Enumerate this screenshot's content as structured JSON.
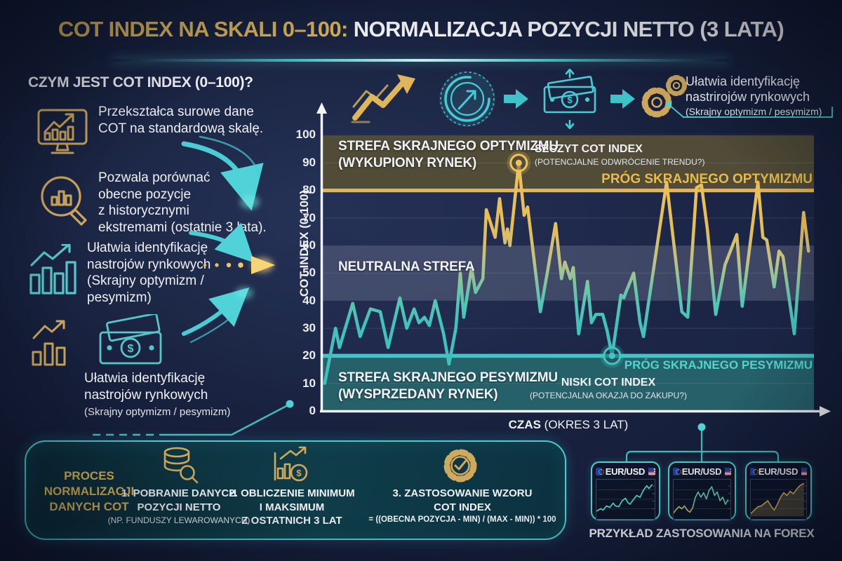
{
  "header": {
    "title_accent": "COT INDEX NA SKALI 0–100:",
    "title_rest": " NORMALIZACJA POZYCJI NETTO (3 LATA)"
  },
  "intro": {
    "heading": "CZYM JEST COT INDEX (0–100)?",
    "items": [
      {
        "icon": "monitor-chart-icon",
        "text": "Przekształca surowe dane\nCOT na standardową skalę."
      },
      {
        "icon": "magnifier-chart-icon",
        "text": "Pozwala porównać\nobecne pozycje\nz historycznymi\nekstremami (ostatnie 3 lata)."
      },
      {
        "icon": "bar-chart-up-icon",
        "text": "Ułatwia identyfikację\nnastrojów rynkowych\n(Skrajny optymizm /\npesymizm)"
      },
      {
        "icon": "bar-chart-up-gold-icon money-icon",
        "text": "Ułatwia identyfikację\nnastrojów rynkowych",
        "sub": "(Skrajny optymizm / pesymizm)"
      }
    ]
  },
  "flow_icons": [
    "trend-arrow-icon",
    "gauge-icon",
    "arrow-right-icon",
    "money-icon",
    "arrow-right-icon",
    "gears-icon"
  ],
  "callout": {
    "text": "Ułatwia identyfikację\nnastrirojów rynkowych",
    "sub": "(Skrajny optymizm / pesymizm)"
  },
  "glyphs": {
    "dollar": "$"
  },
  "chart_data": {
    "type": "line",
    "title": "COT INDEX NA SKALI 0–100: NORMALIZACJA POZYCJI NETTO (3 LATA)",
    "ylabel": "COT INDEX (0-100)",
    "xlabel_bold": "CZAS",
    "xlabel_rest": " (OKRES 3 LAT)",
    "ylim": [
      0,
      100
    ],
    "xlim_note": "x = percent of 3-year period",
    "grid": true,
    "y_ticks": [
      "100",
      "90",
      "80",
      "70",
      "60",
      "50",
      "40",
      "30",
      "20",
      "10",
      "0"
    ],
    "zones": [
      {
        "name": "optimism",
        "label": "STREFA SKRAJNEGO OPTYMIZMU\n(WYKUPIONY RYNEK)",
        "range": [
          80,
          100
        ],
        "color": "#554f36"
      },
      {
        "name": "neutral",
        "label": "NEUTRALNA STREFA",
        "range": [
          40,
          60
        ],
        "color": "#6d7590"
      },
      {
        "name": "pessimism",
        "label": "STREFA SKRAJNEGO PESYMIZMU\n(WYSPRZEDANY RYNEK)",
        "range": [
          0,
          20
        ],
        "color": "#27646c"
      }
    ],
    "thresholds": [
      {
        "label": "PRÓG SKRAJNEGO OPTYMIZMU",
        "value": 80,
        "color": "#e2b74e"
      },
      {
        "label": "PRÓG SKRAJNEGO PESYMIZMU",
        "value": 20,
        "color": "#3ec8c5"
      }
    ],
    "annotations": [
      {
        "label": "SZCZYT COT INDEX",
        "sub": "(POTENCJALNE ODWRÓCENIE TRENDU?)",
        "x": 39.9,
        "y": 90
      },
      {
        "label": "NISKI COT INDEX",
        "sub": "(POTENCJALNA OKAZJA DO ZAKUPU?)",
        "x": 58.9,
        "y": 20
      }
    ],
    "series": [
      {
        "name": "COT Index",
        "points": [
          [
            0.4,
            10
          ],
          [
            2.6,
            30
          ],
          [
            3.4,
            23
          ],
          [
            6.1,
            39
          ],
          [
            7.6,
            27
          ],
          [
            9.7,
            37
          ],
          [
            11.7,
            36
          ],
          [
            13.3,
            23
          ],
          [
            15.7,
            41
          ],
          [
            17.1,
            30
          ],
          [
            18.6,
            37
          ],
          [
            19.6,
            32
          ],
          [
            20.7,
            34
          ],
          [
            21.7,
            31
          ],
          [
            22.9,
            40
          ],
          [
            24.6,
            28
          ],
          [
            25.7,
            17
          ],
          [
            27.1,
            30
          ],
          [
            28,
            50
          ],
          [
            28.7,
            34
          ],
          [
            30.3,
            52
          ],
          [
            31.1,
            43
          ],
          [
            32.6,
            48
          ],
          [
            33.3,
            73
          ],
          [
            35.1,
            63
          ],
          [
            36,
            77
          ],
          [
            37.1,
            61
          ],
          [
            37.6,
            66
          ],
          [
            38.1,
            60
          ],
          [
            39.9,
            90
          ],
          [
            41,
            71
          ],
          [
            41.7,
            74
          ],
          [
            42.6,
            61
          ],
          [
            44.3,
            36
          ],
          [
            45.7,
            50
          ],
          [
            47.4,
            68
          ],
          [
            48.6,
            48
          ],
          [
            49.3,
            54
          ],
          [
            50.4,
            48
          ],
          [
            51,
            52
          ],
          [
            52.1,
            28
          ],
          [
            53.9,
            47
          ],
          [
            54.7,
            32
          ],
          [
            55.6,
            35
          ],
          [
            57,
            35
          ],
          [
            57.9,
            29
          ],
          [
            58.9,
            20
          ],
          [
            60.7,
            42
          ],
          [
            61.3,
            41
          ],
          [
            61.7,
            43
          ],
          [
            63.3,
            50
          ],
          [
            64.6,
            32
          ],
          [
            65.3,
            27
          ],
          [
            70,
            83
          ],
          [
            73.1,
            36
          ],
          [
            74.3,
            34
          ],
          [
            76.1,
            81
          ],
          [
            77.1,
            82
          ],
          [
            78.3,
            66
          ],
          [
            80,
            35
          ],
          [
            81.9,
            53
          ],
          [
            84.3,
            64
          ],
          [
            85.4,
            38
          ],
          [
            88.6,
            83
          ],
          [
            89.6,
            63
          ],
          [
            90.4,
            62
          ],
          [
            91.9,
            45
          ],
          [
            92.9,
            58
          ],
          [
            93.7,
            56
          ],
          [
            96,
            28
          ],
          [
            97.9,
            72
          ],
          [
            98.9,
            58
          ]
        ]
      }
    ],
    "colors": {
      "line_high": "#eec45a",
      "line_low": "#3fc0bf",
      "axis": "#f2f4f8"
    }
  },
  "process": {
    "title": "PROCES\nNORMALIZACJI\nDANYCH COT",
    "steps": [
      {
        "icon": "database-search-icon",
        "text": "1. POBRANIE DANYCH\nPOZYCJI NETTO",
        "sub": "(NP. FUNDUSZY LEWAROWANYCH)"
      },
      {
        "icon": "minmax-chart-icon",
        "text": "2. OBLICZENIE MINIMUM\nI MAKSIMUM\nZ OSTATNICH 3 LAT"
      },
      {
        "icon": "gear-check-icon",
        "text": "3. ZASTOSOWANIE WZORU\nCOT INDEX",
        "formula": "= ((OBECNA POZYCJA - MIN) / (MAX - MIN)) * 100"
      }
    ]
  },
  "forex": {
    "caption": "PRZYKŁAD ZASTOSOWANIA NA FOREX",
    "cards": [
      {
        "pair": "EUR/USD",
        "points": [
          [
            0,
            15
          ],
          [
            8,
            22
          ],
          [
            12,
            18
          ],
          [
            18,
            30
          ],
          [
            24,
            26
          ],
          [
            30,
            38
          ],
          [
            34,
            30
          ],
          [
            40,
            28
          ],
          [
            46,
            45
          ],
          [
            52,
            52
          ],
          [
            56,
            40
          ],
          [
            60,
            35
          ],
          [
            66,
            48
          ],
          [
            72,
            60
          ],
          [
            78,
            55
          ],
          [
            84,
            75
          ],
          [
            90,
            88
          ],
          [
            94,
            80
          ],
          [
            100,
            92
          ]
        ]
      },
      {
        "pair": "EUR/USD",
        "points": [
          [
            0,
            10
          ],
          [
            5,
            20
          ],
          [
            10,
            28
          ],
          [
            15,
            22
          ],
          [
            20,
            30
          ],
          [
            25,
            18
          ],
          [
            30,
            12
          ],
          [
            35,
            25
          ],
          [
            40,
            55
          ],
          [
            45,
            70
          ],
          [
            50,
            55
          ],
          [
            55,
            68
          ],
          [
            60,
            50
          ],
          [
            65,
            75
          ],
          [
            70,
            85
          ],
          [
            75,
            60
          ],
          [
            80,
            70
          ],
          [
            85,
            45
          ],
          [
            90,
            55
          ],
          [
            95,
            35
          ],
          [
            100,
            48
          ]
        ]
      },
      {
        "pair": "EUR/USD",
        "points": [
          [
            0,
            8
          ],
          [
            8,
            20
          ],
          [
            14,
            28
          ],
          [
            20,
            30
          ],
          [
            26,
            38
          ],
          [
            32,
            45
          ],
          [
            38,
            30
          ],
          [
            44,
            18
          ],
          [
            50,
            35
          ],
          [
            56,
            55
          ],
          [
            62,
            68
          ],
          [
            68,
            60
          ],
          [
            74,
            72
          ],
          [
            80,
            65
          ],
          [
            86,
            78
          ],
          [
            92,
            88
          ],
          [
            100,
            95
          ]
        ]
      }
    ]
  }
}
